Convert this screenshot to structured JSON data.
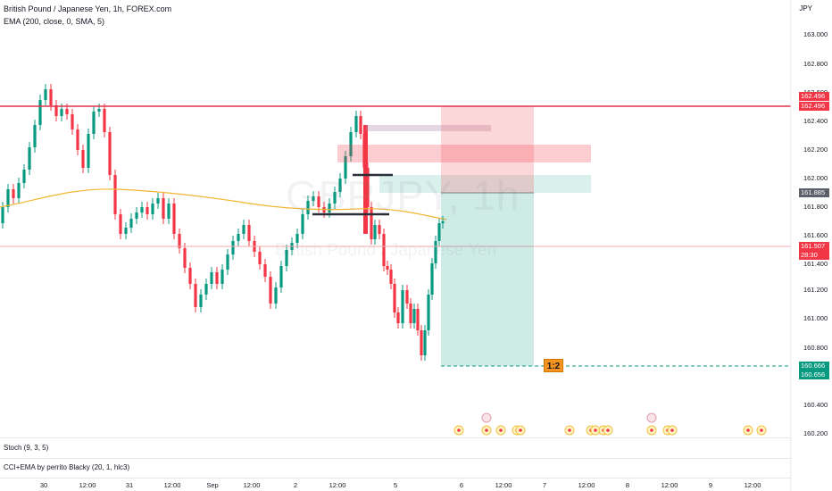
{
  "header": {
    "title": "British Pound / Japanese Yen, 1h, FOREX.com",
    "indicator": "EMA (200, close, 0, SMA, 5)"
  },
  "watermark": {
    "symbol": "GBPJPY, 1h",
    "name": "British Pound / Japanese Yen"
  },
  "price_axis": {
    "unit": "JPY",
    "ticks": [
      "163.000",
      "162.800",
      "162.600",
      "162.400",
      "162.200",
      "162.000",
      "161.800",
      "161.600",
      "161.400",
      "161.200",
      "161.000",
      "160.800",
      "160.400",
      "160.200"
    ]
  },
  "time_axis": {
    "ticks": [
      "30",
      "12:00",
      "31",
      "12:00",
      "Sep",
      "12:00",
      "2",
      "12:00",
      "5",
      "6",
      "12:00",
      "7",
      "12:00",
      "8",
      "12:00",
      "9",
      "12:00"
    ]
  },
  "price_tags": [
    {
      "name": "resistance-upper",
      "text": "162.496",
      "bg": "#f23645"
    },
    {
      "name": "resistance-lower",
      "text": "162.496",
      "bg": "#f23645"
    },
    {
      "name": "entry-price",
      "text": "161.885",
      "bg": "#5d606b"
    },
    {
      "name": "last-price",
      "text": "161.507",
      "bg": "#f23645"
    },
    {
      "name": "countdown",
      "text": "28:30",
      "bg": "#f23645"
    },
    {
      "name": "target-upper",
      "text": "160.666",
      "bg": "#089981"
    },
    {
      "name": "target-lower",
      "text": "160.656",
      "bg": "#089981"
    }
  ],
  "risk_reward": "1:2",
  "subpanes": {
    "stoch": "Stoch (9, 3, 5)",
    "cci": "CCI+EMA by perrito Blacky (20, 1, hlc3)"
  },
  "colors": {
    "up": "#089981",
    "down": "#f23645",
    "ema": "#f2b631",
    "resistance": "#e0334e",
    "target_zone": "#b2dfdb",
    "stop_zone": "#ffcdd2"
  },
  "chart_data": {
    "type": "candlestick",
    "y_axis": {
      "min": 160.2,
      "max": 163.0
    },
    "resistance_level": 162.496,
    "entry": 161.885,
    "stop": 162.496,
    "target": 160.666,
    "last_price": 161.507
  }
}
